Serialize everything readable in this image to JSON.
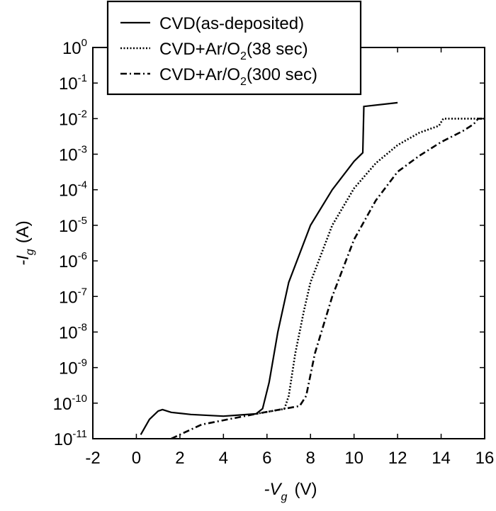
{
  "chart_data": {
    "type": "line",
    "title": "",
    "xlabel": "-V",
    "xlabel_sub": "g",
    "xlabel_unit": "(V)",
    "ylabel": "-I",
    "ylabel_sub": "g",
    "ylabel_unit": "(A)",
    "xlim": [
      -2,
      16
    ],
    "ylim": [
      1e-11,
      1
    ],
    "yscale": "log",
    "xticks": [
      "-2",
      "0",
      "2",
      "4",
      "6",
      "8",
      "10",
      "12",
      "14",
      "16"
    ],
    "xtick_values": [
      -2,
      0,
      2,
      4,
      6,
      8,
      10,
      12,
      14,
      16
    ],
    "yticks": [
      {
        "base": "10",
        "exp": "0",
        "value": 1
      },
      {
        "base": "10",
        "exp": "-1",
        "value": 0.1
      },
      {
        "base": "10",
        "exp": "-2",
        "value": 0.01
      },
      {
        "base": "10",
        "exp": "-3",
        "value": 0.001
      },
      {
        "base": "10",
        "exp": "-4",
        "value": 0.0001
      },
      {
        "base": "10",
        "exp": "-5",
        "value": 1e-05
      },
      {
        "base": "10",
        "exp": "-6",
        "value": 1e-06
      },
      {
        "base": "10",
        "exp": "-7",
        "value": 1e-07
      },
      {
        "base": "10",
        "exp": "-8",
        "value": 1e-08
      },
      {
        "base": "10",
        "exp": "-9",
        "value": 1e-09
      },
      {
        "base": "10",
        "exp": "-10",
        "value": 1e-10
      },
      {
        "base": "10",
        "exp": "-11",
        "value": 1e-11
      }
    ],
    "legend_position": "top-left",
    "series": [
      {
        "name": "CVD(as-deposited)",
        "legend": {
          "pre": "CVD(as-deposited)",
          "sub": "",
          "post": ""
        },
        "style": "solid",
        "x": [
          0.2,
          0.6,
          1.0,
          1.2,
          1.6,
          2.5,
          4.0,
          5.5,
          5.8,
          6.1,
          6.5,
          7.0,
          8.0,
          9.0,
          10.0,
          10.4,
          10.45,
          12.0
        ],
        "y": [
          1.3e-11,
          3.5e-11,
          6e-11,
          6.6e-11,
          5.5e-11,
          4.8e-11,
          4.3e-11,
          5e-11,
          7e-11,
          3.8e-10,
          1e-08,
          2.5e-07,
          1e-05,
          0.0001,
          0.00063,
          0.0011,
          0.022,
          0.028
        ]
      },
      {
        "name": "CVD+Ar/O2(38 sec)",
        "legend": {
          "pre": "CVD+Ar/O",
          "sub": "2",
          "post": "(38 sec)"
        },
        "style": "dotted",
        "x": [
          5.5,
          6.8,
          7.0,
          7.3,
          7.7,
          8.0,
          9.0,
          10.0,
          11.0,
          12.0,
          13.0,
          13.9,
          14.1,
          16.0
        ],
        "y": [
          5e-11,
          6.9e-11,
          1.6e-10,
          2.5e-09,
          4e-08,
          2.5e-07,
          1e-05,
          0.00011,
          0.00056,
          0.0018,
          0.004,
          0.0063,
          0.01,
          0.01
        ]
      },
      {
        "name": "CVD+Ar/O2(300 sec)",
        "legend": {
          "pre": "CVD+Ar/O",
          "sub": "2",
          "post": "(300 sec)"
        },
        "style": "dashdot",
        "x": [
          1.6,
          3.0,
          4.0,
          5.5,
          7.5,
          7.8,
          8.2,
          8.6,
          9.0,
          10.0,
          11.0,
          12.0,
          13.0,
          14.0,
          15.0,
          15.5,
          15.7,
          16.0
        ],
        "y": [
          1e-11,
          2.5e-11,
          3.3e-11,
          5e-11,
          8.3e-11,
          1.6e-10,
          2.5e-09,
          1.6e-08,
          1e-07,
          4e-06,
          5e-05,
          0.00032,
          0.0009,
          0.0022,
          0.0045,
          0.007,
          0.01,
          0.01
        ]
      }
    ]
  }
}
